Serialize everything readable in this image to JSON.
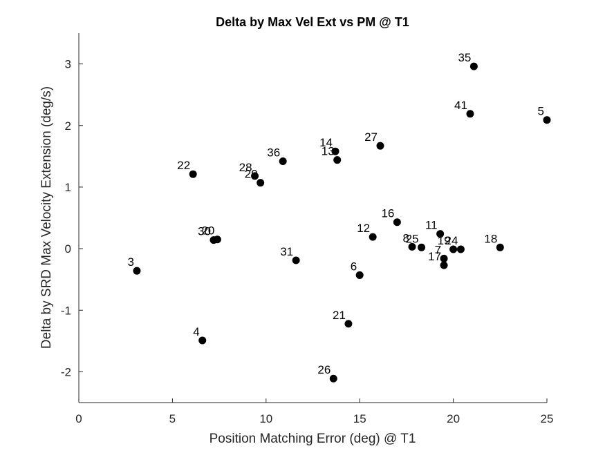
{
  "chart_data": {
    "type": "scatter",
    "title": "Delta by Max Vel Ext vs PM @ T1",
    "xlabel": "Position Matching Error (deg) @ T1",
    "ylabel": "Delta by SRD Max Velocity Extension (deg/s)",
    "xlim": [
      0,
      25
    ],
    "ylim": [
      -2.5,
      3.5
    ],
    "xticks": [
      0,
      5,
      10,
      15,
      20,
      25
    ],
    "yticks": [
      -2,
      -1,
      0,
      1,
      2,
      3
    ],
    "grid": false,
    "marker_color": "#000000",
    "points": [
      {
        "label": "35",
        "x": 21.1,
        "y": 2.96
      },
      {
        "label": "41",
        "x": 20.9,
        "y": 2.19
      },
      {
        "label": "5",
        "x": 25.0,
        "y": 2.09
      },
      {
        "label": "27",
        "x": 16.1,
        "y": 1.67
      },
      {
        "label": "14",
        "x": 13.7,
        "y": 1.58
      },
      {
        "label": "13",
        "x": 13.8,
        "y": 1.44
      },
      {
        "label": "36",
        "x": 10.9,
        "y": 1.42
      },
      {
        "label": "22",
        "x": 6.1,
        "y": 1.21
      },
      {
        "label": "28",
        "x": 9.4,
        "y": 1.18
      },
      {
        "label": "29",
        "x": 9.7,
        "y": 1.07
      },
      {
        "label": "16",
        "x": 17.0,
        "y": 0.43
      },
      {
        "label": "11",
        "x": 19.3,
        "y": 0.24
      },
      {
        "label": "12",
        "x": 15.7,
        "y": 0.19
      },
      {
        "label": "30",
        "x": 7.2,
        "y": 0.14
      },
      {
        "label": "20",
        "x": 7.4,
        "y": 0.15
      },
      {
        "label": "8",
        "x": 17.8,
        "y": 0.03
      },
      {
        "label": "25",
        "x": 18.3,
        "y": 0.02
      },
      {
        "label": "19",
        "x": 20.0,
        "y": -0.01
      },
      {
        "label": "24",
        "x": 20.4,
        "y": -0.01
      },
      {
        "label": "18",
        "x": 22.5,
        "y": 0.02
      },
      {
        "label": "7",
        "x": 19.5,
        "y": -0.16
      },
      {
        "label": "17",
        "x": 19.5,
        "y": -0.27
      },
      {
        "label": "31",
        "x": 11.6,
        "y": -0.19
      },
      {
        "label": "3",
        "x": 3.1,
        "y": -0.36
      },
      {
        "label": "6",
        "x": 15.0,
        "y": -0.43
      },
      {
        "label": "21",
        "x": 14.4,
        "y": -1.22
      },
      {
        "label": "4",
        "x": 6.6,
        "y": -1.49
      },
      {
        "label": "26",
        "x": 13.6,
        "y": -2.11
      }
    ]
  }
}
